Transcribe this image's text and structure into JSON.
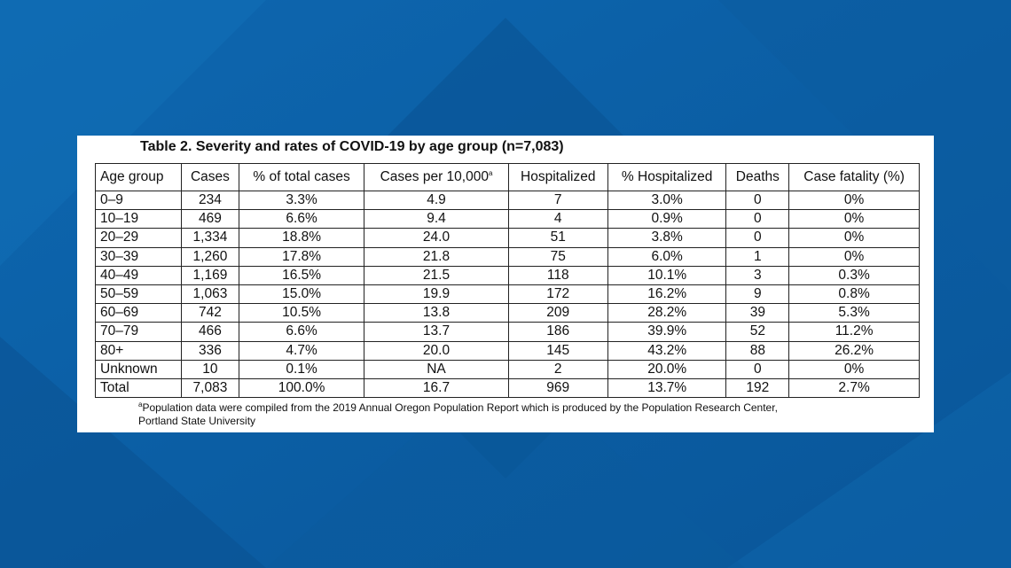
{
  "colors": {
    "background": "#0b5fa5",
    "background_dark": "#0a4f8e",
    "background_light": "#1470b8",
    "card": "#ffffff",
    "text": "#111111"
  },
  "title": "Table 2. Severity and rates of COVID-19 by age group (n=7,083)",
  "table": {
    "headers": [
      "Age group",
      "Cases",
      "% of total cases",
      "Cases per 10,000",
      "Hospitalized",
      "% Hospitalized",
      "Deaths",
      "Case fatality (%)"
    ],
    "header_footnote_marker": "a",
    "rows": [
      [
        "0–9",
        "234",
        "3.3%",
        "4.9",
        "7",
        "3.0%",
        "0",
        "0%"
      ],
      [
        "10–19",
        "469",
        "6.6%",
        "9.4",
        "4",
        "0.9%",
        "0",
        "0%"
      ],
      [
        "20–29",
        "1,334",
        "18.8%",
        "24.0",
        "51",
        "3.8%",
        "0",
        "0%"
      ],
      [
        "30–39",
        "1,260",
        "17.8%",
        "21.8",
        "75",
        "6.0%",
        "1",
        "0%"
      ],
      [
        "40–49",
        "1,169",
        "16.5%",
        "21.5",
        "118",
        "10.1%",
        "3",
        "0.3%"
      ],
      [
        "50–59",
        "1,063",
        "15.0%",
        "19.9",
        "172",
        "16.2%",
        "9",
        "0.8%"
      ],
      [
        "60–69",
        "742",
        "10.5%",
        "13.8",
        "209",
        "28.2%",
        "39",
        "5.3%"
      ],
      [
        "70–79",
        "466",
        "6.6%",
        "13.7",
        "186",
        "39.9%",
        "52",
        "11.2%"
      ],
      [
        "80+",
        "336",
        "4.7%",
        "20.0",
        "145",
        "43.2%",
        "88",
        "26.2%"
      ],
      [
        "Unknown",
        "10",
        "0.1%",
        "NA",
        "2",
        "20.0%",
        "0",
        "0%"
      ],
      [
        "Total",
        "7,083",
        "100.0%",
        "16.7",
        "969",
        "13.7%",
        "192",
        "2.7%"
      ]
    ]
  },
  "footnote": {
    "marker": "a",
    "line1": "Population data were compiled from the 2019 Annual Oregon Population Report which is produced by the Population Research Center,",
    "line2": "Portland State University"
  }
}
